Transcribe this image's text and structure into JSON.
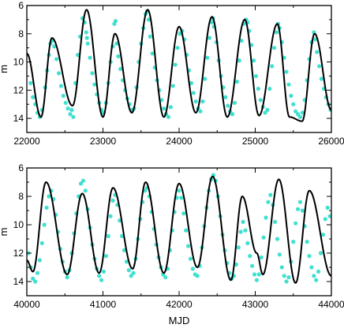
{
  "chart_data": [
    {
      "type": "scatter",
      "xlabel": "",
      "ylabel": "m",
      "xlim": [
        22000,
        26000
      ],
      "ylim": [
        6,
        15
      ],
      "y_inverted": true,
      "xticks": [
        22000,
        23000,
        24000,
        25000,
        26000
      ],
      "yticks": [
        6,
        8,
        10,
        12,
        14
      ],
      "colors": {
        "observations": "#40e0d0",
        "model": "#000000"
      },
      "model_extrema": {
        "times": [
          22000,
          22186,
          22330,
          22600,
          22785,
          23000,
          23158,
          23380,
          23587,
          23800,
          24000,
          24220,
          24432,
          24633,
          24862,
          25050,
          25290,
          25450,
          25616,
          25780,
          26000
        ],
        "mags": [
          9.4,
          13.9,
          8.3,
          13.1,
          6.3,
          13.9,
          8.0,
          13.6,
          6.3,
          13.9,
          7.5,
          13.6,
          6.8,
          13.9,
          7.0,
          13.8,
          7.3,
          13.9,
          14.2,
          8.0,
          13.4
        ]
      },
      "observations": {
        "x": [
          22050,
          22080,
          22110,
          22140,
          22170,
          22200,
          22240,
          22265,
          22290,
          22310,
          22335,
          22360,
          22390,
          22420,
          22450,
          22480,
          22510,
          22540,
          22570,
          22590,
          22610,
          22640,
          22670,
          22700,
          22730,
          22760,
          22780,
          22790,
          22800,
          22830,
          22860,
          22890,
          22920,
          22950,
          22980,
          23010,
          23040,
          23070,
          23100,
          23130,
          23150,
          23165,
          23180,
          23200,
          23230,
          23260,
          23290,
          23320,
          23350,
          23380,
          23410,
          23440,
          23470,
          23500,
          23530,
          23560,
          23580,
          23600,
          23620,
          23650,
          23680,
          23710,
          23740,
          23770,
          23800,
          23830,
          23860,
          23890,
          23920,
          23950,
          23980,
          24010,
          24040,
          24070,
          24100,
          24130,
          24160,
          24190,
          24220,
          24250,
          24280,
          24310,
          24340,
          24370,
          24400,
          24430,
          24445,
          24460,
          24490,
          24520,
          24550,
          24580,
          24610,
          24640,
          24670,
          24700,
          24730,
          24760,
          24790,
          24820,
          24850,
          24880,
          24900,
          24920,
          24950,
          24980,
          25010,
          25040,
          25070,
          25100,
          25130,
          25160,
          25190,
          25220,
          25250,
          25280,
          25300,
          25320,
          25350,
          25380,
          25410,
          25440,
          25470,
          25500,
          25530,
          25560,
          25590,
          25620,
          25650,
          25680,
          25710,
          25740,
          25770,
          25790,
          25810,
          25840,
          25870,
          25900,
          25930,
          25960,
          25990
        ],
        "y": [
          11.5,
          12.5,
          13.0,
          13.6,
          13.9,
          13.4,
          11.8,
          10.6,
          9.5,
          8.7,
          8.5,
          8.9,
          9.8,
          10.8,
          11.7,
          12.4,
          12.9,
          13.3,
          13.7,
          13.4,
          13.9,
          11.5,
          9.5,
          8.2,
          6.9,
          7.2,
          7.9,
          8.3,
          8.7,
          9.7,
          10.8,
          11.6,
          12.3,
          12.9,
          13.4,
          13.6,
          12.9,
          11.5,
          10.0,
          8.9,
          7.3,
          7.1,
          8.7,
          9.6,
          10.5,
          11.3,
          12.0,
          12.6,
          13.0,
          13.4,
          13.3,
          11.8,
          10.0,
          8.7,
          7.6,
          6.6,
          6.4,
          7.0,
          8.2,
          9.4,
          10.4,
          11.3,
          12.0,
          12.7,
          13.3,
          13.7,
          13.9,
          13.2,
          11.7,
          10.2,
          9.0,
          8.0,
          7.8,
          8.4,
          9.5,
          10.6,
          11.5,
          12.2,
          12.8,
          13.3,
          13.5,
          12.8,
          11.2,
          9.7,
          8.3,
          7.2,
          6.9,
          7.5,
          8.6,
          9.9,
          11.0,
          11.8,
          12.5,
          13.1,
          13.5,
          13.7,
          12.9,
          11.4,
          9.9,
          8.5,
          7.3,
          7.0,
          7.2,
          7.8,
          8.8,
          9.9,
          11.0,
          11.9,
          12.7,
          13.2,
          13.6,
          13.4,
          11.9,
          10.3,
          9.0,
          7.9,
          7.3,
          7.6,
          8.6,
          9.7,
          10.7,
          11.6,
          12.4,
          13.0,
          13.5,
          13.7,
          13.9,
          13.6,
          12.7,
          11.3,
          9.8,
          8.6,
          7.9,
          8.4,
          9.3,
          10.3,
          11.2,
          11.9,
          12.5,
          13.0,
          13.4
        ]
      }
    },
    {
      "type": "scatter",
      "xlabel": "MJD",
      "ylabel": "m",
      "xlim": [
        40000,
        44000
      ],
      "ylim": [
        6,
        15
      ],
      "y_inverted": true,
      "xticks": [
        40000,
        41000,
        42000,
        43000,
        44000
      ],
      "yticks": [
        6,
        8,
        10,
        12,
        14
      ],
      "colors": {
        "observations": "#40e0d0",
        "model": "#000000"
      },
      "model_extrema": {
        "times": [
          40000,
          40080,
          40252,
          40530,
          40728,
          40950,
          41132,
          41390,
          41560,
          41800,
          42000,
          42240,
          42440,
          42680,
          42830,
          43020,
          43100,
          43310,
          43530,
          43710,
          44000
        ],
        "mags": [
          12.5,
          13.3,
          7.0,
          13.5,
          7.8,
          13.4,
          7.4,
          13.1,
          7.0,
          13.4,
          7.1,
          13.0,
          6.6,
          13.9,
          8.0,
          12.0,
          13.5,
          6.8,
          14.1,
          7.6,
          13.6
        ]
      },
      "observations": {
        "x": [
          40020,
          40050,
          40080,
          40110,
          40140,
          40170,
          40200,
          40230,
          40260,
          40290,
          40320,
          40350,
          40380,
          40410,
          40440,
          40470,
          40500,
          40530,
          40560,
          40590,
          40620,
          40650,
          40680,
          40710,
          40740,
          40770,
          40800,
          40830,
          40860,
          40890,
          40920,
          40950,
          40980,
          41010,
          41040,
          41070,
          41100,
          41130,
          41160,
          41190,
          41220,
          41250,
          41280,
          41310,
          41340,
          41370,
          41400,
          41430,
          41460,
          41490,
          41520,
          41550,
          41580,
          41610,
          41640,
          41670,
          41700,
          41730,
          41760,
          41790,
          41820,
          41850,
          41880,
          41910,
          41940,
          41970,
          42000,
          42030,
          42060,
          42090,
          42120,
          42150,
          42180,
          42210,
          42240,
          42270,
          42300,
          42330,
          42360,
          42390,
          42420,
          42450,
          42480,
          42510,
          42540,
          42570,
          42600,
          42630,
          42660,
          42690,
          42720,
          42750,
          42780,
          42810,
          42840,
          42870,
          42900,
          42930,
          42960,
          42990,
          43020,
          43050,
          43080,
          43110,
          43140,
          43170,
          43200,
          43230,
          43260,
          43290,
          43320,
          43350,
          43380,
          43410,
          43440,
          43470,
          43500,
          43530,
          43560,
          43590,
          43620,
          43650,
          43680,
          43710,
          43740,
          43770,
          43800,
          43830,
          43860,
          43890,
          43920,
          43950,
          43980
        ],
        "y": [
          12.0,
          13.0,
          13.8,
          14.0,
          13.4,
          12.5,
          11.3,
          10.0,
          8.8,
          8.0,
          7.6,
          8.2,
          9.3,
          10.5,
          11.7,
          12.6,
          13.3,
          13.7,
          13.2,
          12.0,
          10.6,
          9.2,
          8.0,
          7.1,
          6.9,
          7.6,
          8.9,
          10.2,
          11.4,
          12.4,
          13.1,
          13.6,
          13.9,
          13.3,
          12.2,
          10.8,
          9.4,
          8.3,
          7.9,
          8.6,
          9.7,
          10.8,
          11.8,
          12.6,
          13.2,
          13.6,
          13.4,
          12.4,
          11.0,
          9.6,
          8.4,
          7.6,
          7.4,
          8.0,
          9.1,
          10.3,
          11.4,
          12.3,
          13.0,
          13.5,
          13.7,
          13.1,
          11.8,
          10.4,
          9.1,
          8.1,
          7.6,
          8.1,
          9.2,
          10.4,
          11.5,
          12.4,
          13.1,
          13.5,
          13.6,
          12.9,
          11.6,
          10.1,
          8.8,
          7.6,
          6.8,
          6.5,
          6.9,
          8.0,
          9.4,
          10.7,
          11.8,
          12.7,
          13.4,
          13.8,
          13.6,
          12.8,
          11.6,
          10.5,
          9.8,
          10.4,
          11.3,
          12.2,
          12.9,
          13.5,
          13.9,
          13.5,
          12.3,
          10.9,
          9.5,
          8.4,
          7.9,
          8.6,
          9.8,
          11.0,
          12.1,
          13.0,
          13.6,
          14.0,
          13.7,
          12.6,
          11.2,
          9.9,
          8.9,
          8.4,
          9.0,
          10.1,
          11.2,
          12.2,
          13.0,
          13.6,
          13.9,
          13.3,
          12.0,
          10.7,
          9.6,
          8.8,
          9.4
        ]
      }
    }
  ]
}
